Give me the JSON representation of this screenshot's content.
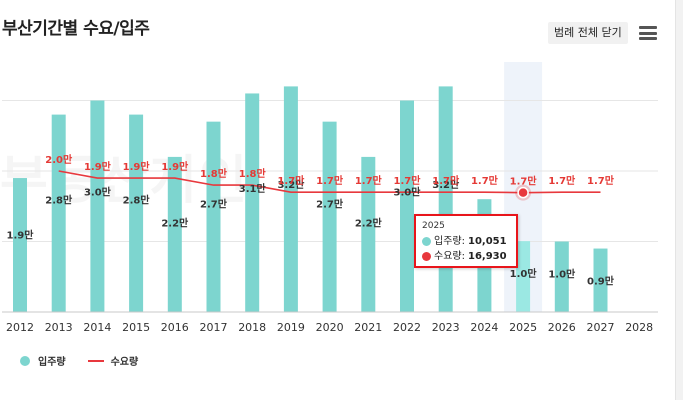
{
  "header": {
    "title": "부산기간별 수요/입주",
    "legend_toggle_label": "범례 전체 닫기",
    "menu_icon": "hamburger-menu-icon"
  },
  "watermark": "부동산지인",
  "colors": {
    "supply_bar": "#7dd5cf",
    "supply_bar_highlight": "#9be8e3",
    "demand_line": "#e8383d",
    "highlight_band": "#eef3fa",
    "tooltip_border": "#e8151b",
    "grid": "#e6e6e6"
  },
  "chart_data": {
    "type": "bar",
    "categories": [
      "2012",
      "2013",
      "2014",
      "2015",
      "2016",
      "2017",
      "2018",
      "2019",
      "2020",
      "2021",
      "2022",
      "2023",
      "2024",
      "2025",
      "2026",
      "2027",
      "2028"
    ],
    "series": [
      {
        "name": "입주량",
        "type": "bar",
        "values": [
          19000,
          28000,
          30000,
          28000,
          22000,
          27000,
          31000,
          32000,
          27000,
          22000,
          30000,
          32000,
          16000,
          10051,
          10000,
          9000,
          null
        ],
        "labels": [
          "1.9만",
          "2.8만",
          "3.0만",
          "2.8만",
          "2.2만",
          "2.7만",
          "3.1만",
          "3.2만",
          "2.7만",
          "2.2만",
          "3.0만",
          "3.2만",
          "",
          "1.0만",
          "1.0만",
          "0.9만",
          ""
        ]
      },
      {
        "name": "수요량",
        "type": "line",
        "values": [
          null,
          20000,
          19000,
          19000,
          19000,
          18000,
          18000,
          17000,
          17000,
          17000,
          17000,
          17000,
          17000,
          16930,
          17000,
          17000,
          null
        ],
        "labels": [
          "",
          "2.0만",
          "1.9만",
          "1.9만",
          "1.9만",
          "1.8만",
          "1.8만",
          "1.7만",
          "1.7만",
          "1.7만",
          "1.7만",
          "1.7만",
          "1.7만",
          "1.7만",
          "1.7만",
          "1.7만",
          ""
        ]
      }
    ],
    "ylim": [
      0,
      40000
    ],
    "grid": true,
    "highlight_category": "2025",
    "legend_position": "bottom-left"
  },
  "tooltip": {
    "year": "2025",
    "supply_label": "입주량:",
    "supply_value": "10,051",
    "demand_label": "수요량:",
    "demand_value": "16,930"
  },
  "legend": {
    "supply_label": "입주량",
    "demand_label": "수요량"
  }
}
